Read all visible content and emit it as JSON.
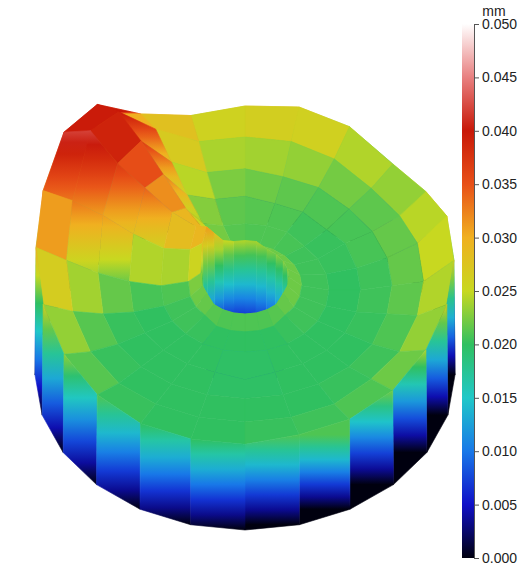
{
  "chart_data": {
    "type": "surface",
    "colorbar": {
      "title": "mm",
      "range": [
        0,
        0.05
      ],
      "ticks": [
        {
          "value": 0,
          "label": "0.000"
        },
        {
          "value": 0.005,
          "label": "0.005"
        },
        {
          "value": 0.01,
          "label": "0.010"
        },
        {
          "value": 0.015,
          "label": "0.015"
        },
        {
          "value": 0.02,
          "label": "0.020"
        },
        {
          "value": 0.025,
          "label": "0.025"
        },
        {
          "value": 0.03,
          "label": "0.030"
        },
        {
          "value": 0.035,
          "label": "0.035"
        },
        {
          "value": 0.04,
          "label": "0.040"
        },
        {
          "value": 0.045,
          "label": "0.045"
        },
        {
          "value": 0.05,
          "label": "0.050"
        }
      ]
    },
    "radii": [
      0.2,
      0.21,
      0.27,
      0.4,
      0.55,
      0.7,
      0.85,
      0.995,
      1
    ],
    "angles": [
      0,
      15,
      30,
      45,
      60,
      75,
      90,
      105,
      120,
      135,
      150,
      165,
      180,
      195,
      210,
      225,
      240,
      255,
      270,
      285,
      300,
      315,
      330,
      345
    ],
    "z": [
      [
        0.004,
        0.023,
        0.021,
        0.02,
        0.02,
        0.021,
        0.022,
        0.027,
        0
      ],
      [
        0.004,
        0.023,
        0.021,
        0.02,
        0.02,
        0.021,
        0.023,
        0.028,
        0
      ],
      [
        0.004,
        0.023,
        0.021,
        0.02,
        0.021,
        0.021,
        0.022,
        0.025,
        0
      ],
      [
        0.004,
        0.023,
        0.021,
        0.02,
        0.02,
        0.021,
        0.022,
        0.024,
        0
      ],
      [
        0.004,
        0.023,
        0.021,
        0.021,
        0.021,
        0.022,
        0.024,
        0.027,
        0
      ],
      [
        0.004,
        0.024,
        0.021,
        0.021,
        0.021,
        0.022,
        0.025,
        0.028,
        0
      ],
      [
        0.004,
        0.024,
        0.021,
        0.021,
        0.022,
        0.023,
        0.025,
        0.027,
        0
      ],
      [
        0.004,
        0.024,
        0.022,
        0.021,
        0.022,
        0.023,
        0.025,
        0.026,
        0
      ],
      [
        0.004,
        0.025,
        0.023,
        0.023,
        0.025,
        0.028,
        0.031,
        0.03,
        0
      ],
      [
        0.004,
        0.028,
        0.027,
        0.029,
        0.033,
        0.037,
        0.04,
        0.038,
        0
      ],
      [
        0.004,
        0.031,
        0.03,
        0.031,
        0.034,
        0.037,
        0.042,
        0.039,
        0
      ],
      [
        0.004,
        0.029,
        0.027,
        0.026,
        0.028,
        0.031,
        0.033,
        0.034,
        0
      ],
      [
        0.004,
        0.024,
        0.022,
        0.021,
        0.022,
        0.024,
        0.027,
        0.03,
        0
      ],
      [
        0.004,
        0.023,
        0.021,
        0.02,
        0.02,
        0.021,
        0.023,
        0.026,
        0
      ],
      [
        0.004,
        0.023,
        0.021,
        0.02,
        0.02,
        0.02,
        0.021,
        0.023,
        0
      ],
      [
        0.004,
        0.022,
        0.021,
        0.02,
        0.02,
        0.02,
        0.02,
        0.021,
        0
      ],
      [
        0.004,
        0.022,
        0.02,
        0.02,
        0.02,
        0.02,
        0.02,
        0.02,
        0
      ],
      [
        0.004,
        0.022,
        0.02,
        0.02,
        0.02,
        0.02,
        0.02,
        0.02,
        0
      ],
      [
        0.004,
        0.022,
        0.02,
        0.02,
        0.019,
        0.02,
        0.02,
        0.02,
        0
      ],
      [
        0.004,
        0.022,
        0.02,
        0.02,
        0.02,
        0.02,
        0.02,
        0.021,
        0
      ],
      [
        0.004,
        0.022,
        0.02,
        0.02,
        0.02,
        0.02,
        0.02,
        0.021,
        0
      ],
      [
        0.004,
        0.022,
        0.021,
        0.02,
        0.02,
        0.02,
        0.021,
        0.022,
        0
      ],
      [
        0.004,
        0.023,
        0.021,
        0.02,
        0.02,
        0.02,
        0.021,
        0.024,
        0
      ],
      [
        0.004,
        0.023,
        0.021,
        0.02,
        0.02,
        0.021,
        0.022,
        0.026,
        0
      ]
    ]
  }
}
